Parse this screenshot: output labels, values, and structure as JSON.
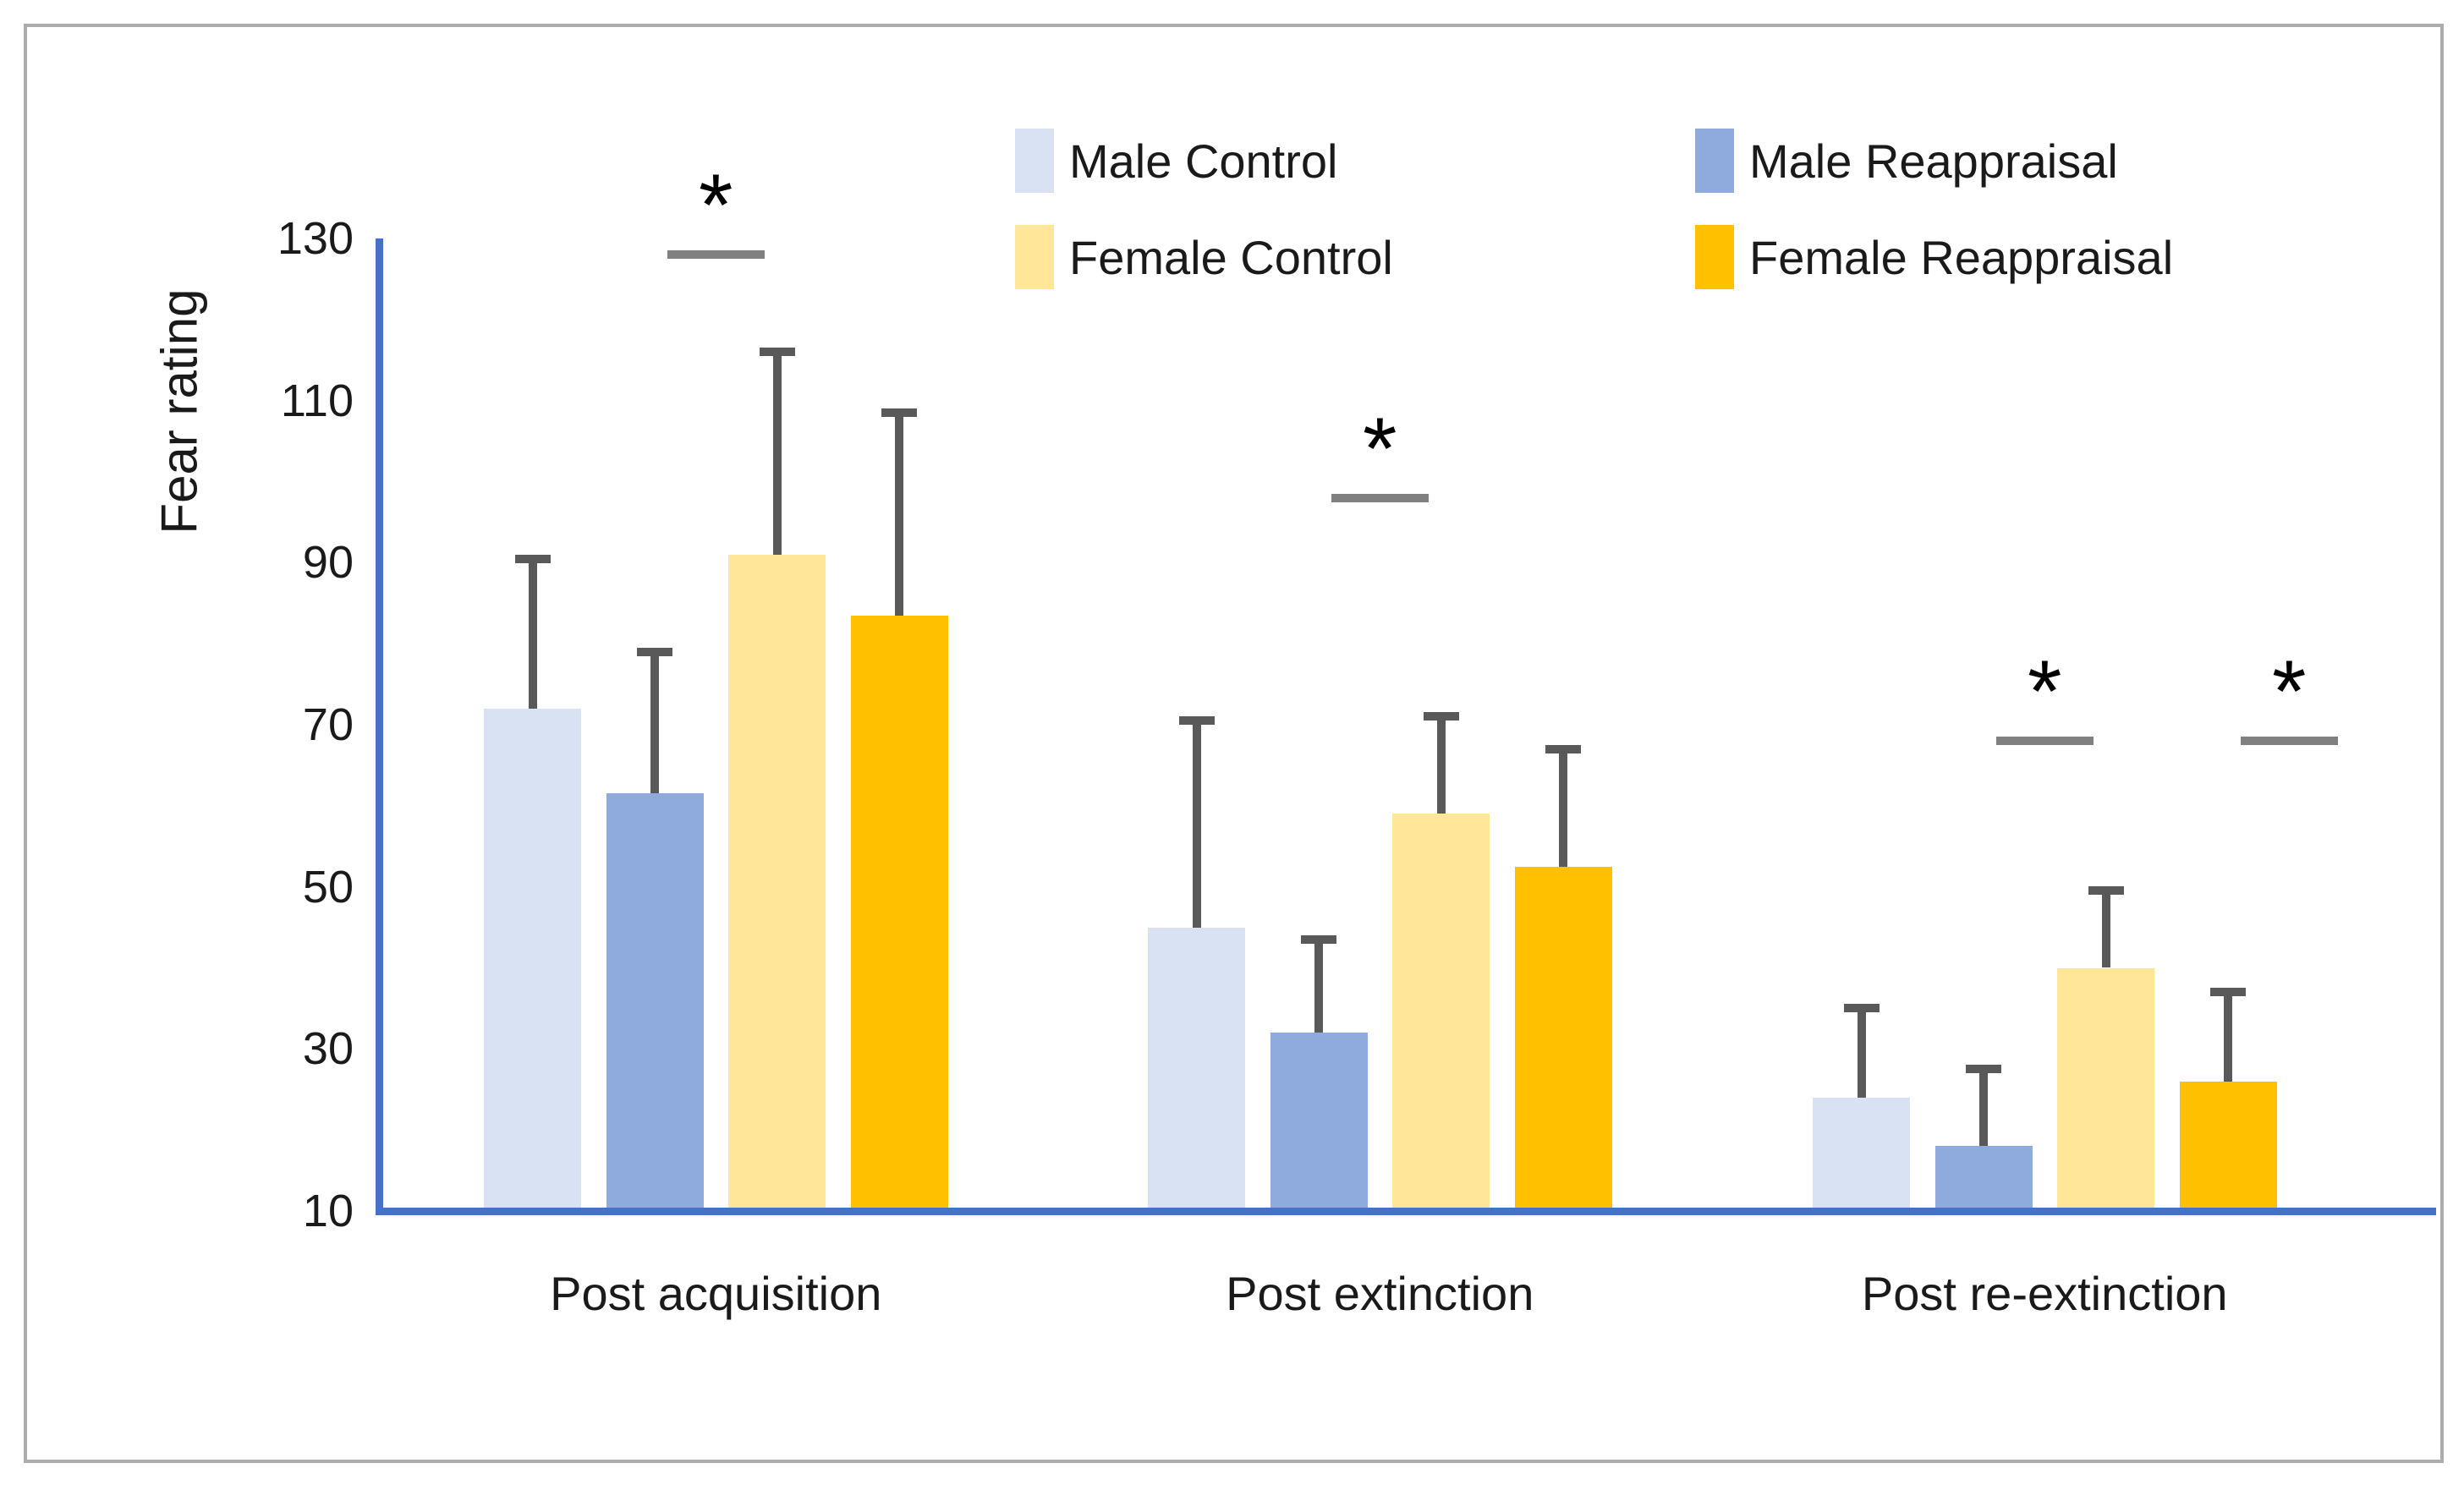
{
  "chart_data": {
    "type": "bar",
    "title": "",
    "xlabel": "",
    "ylabel": "Fear rating",
    "ylim": [
      10,
      130
    ],
    "yticks": [
      10,
      30,
      50,
      70,
      90,
      110,
      130
    ],
    "grid": false,
    "legend_position": "top",
    "error_bars": "upper only",
    "categories": [
      "Post acquisition",
      "Post extinction",
      "Post re-extinction"
    ],
    "series": [
      {
        "name": "Male Control",
        "color": "#d9e2f3",
        "values": [
          72,
          45,
          24
        ],
        "upper_errors": [
          18.5,
          25.5,
          11
        ]
      },
      {
        "name": "Male Reappraisal",
        "color": "#8faadc",
        "values": [
          61.5,
          32,
          18
        ],
        "upper_errors": [
          17.5,
          11.5,
          9.5
        ]
      },
      {
        "name": "Female Control",
        "color": "#ffe699",
        "values": [
          91,
          59,
          40
        ],
        "upper_errors": [
          25,
          12,
          9.5
        ]
      },
      {
        "name": "Female Reappraisal",
        "color": "#ffc000",
        "values": [
          83.5,
          52.5,
          26
        ],
        "upper_errors": [
          25,
          14.5,
          11
        ]
      }
    ],
    "significance_markers": [
      {
        "label": "*",
        "group_index": 0,
        "gap_after_series_index": 1,
        "line_value": 128
      },
      {
        "label": "*",
        "group_index": 1,
        "gap_after_series_index": 1,
        "line_value": 98
      },
      {
        "label": "*",
        "group_index": 2,
        "gap_after_series_index": 1,
        "line_value": 68
      },
      {
        "label": "*",
        "group_index": 2,
        "gap_after_series_index": 3,
        "line_value": 68
      }
    ],
    "axis_color": "#4472c4",
    "error_bar_color": "#595959",
    "significance_line_color": "#808080"
  }
}
